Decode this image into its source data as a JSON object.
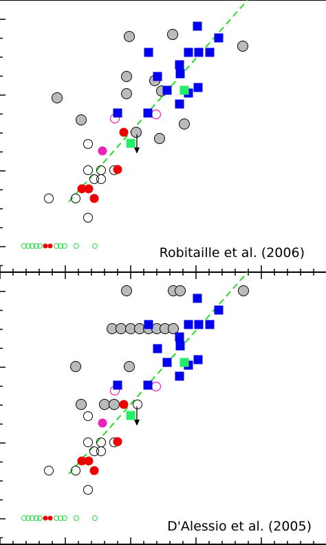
{
  "chart_data": [
    {
      "type": "scatter",
      "title": "",
      "annotation": "Robitaille et al. (2006)",
      "xlabel": "",
      "ylabel": "",
      "xlim": [
        0,
        474
      ],
      "ylim": [
        0,
        395
      ],
      "trend_line": {
        "color": "#22dd22",
        "dash": true,
        "points": [
          [
            100,
            102
          ],
          [
            360,
            395
          ]
        ]
      },
      "series": [
        {
          "marker": "circle-gray",
          "points": [
            [
              188,
              342
            ],
            [
              251,
              345
            ],
            [
              353,
              328
            ],
            [
              83,
              253
            ],
            [
              184,
              284
            ],
            [
              225,
              278
            ],
            [
              235,
              263
            ],
            [
              118,
              221
            ],
            [
              268,
              215
            ],
            [
              198,
              203
            ],
            [
              232,
              194
            ],
            [
              184,
              259
            ]
          ]
        },
        {
          "marker": "square-blue",
          "points": [
            [
              287,
              357
            ],
            [
              318,
              340
            ],
            [
              216,
              319
            ],
            [
              274,
              319
            ],
            [
              289,
              319
            ],
            [
              305,
              319
            ],
            [
              261,
              301
            ],
            [
              229,
              284
            ],
            [
              262,
              288
            ],
            [
              243,
              264
            ],
            [
              288,
              268
            ],
            [
              274,
              260
            ],
            [
              261,
              244
            ],
            [
              215,
              231
            ],
            [
              171,
              231
            ]
          ]
        },
        {
          "marker": "square-green",
          "points": [
            [
              268,
              264
            ],
            [
              190,
              187
            ]
          ]
        },
        {
          "marker": "circle-magenta-open",
          "points": [
            [
              227,
              229
            ],
            [
              167,
              223
            ]
          ]
        },
        {
          "marker": "circle-magenta",
          "points": [
            [
              149,
              176
            ]
          ]
        },
        {
          "marker": "circle-red",
          "points": [
            [
              180,
              203
            ],
            [
              171,
              149
            ],
            [
              119,
              121
            ],
            [
              129,
              121
            ],
            [
              137,
              107
            ]
          ]
        },
        {
          "marker": "circle-open",
          "points": [
            [
              128,
              186
            ],
            [
              128,
              148
            ],
            [
              147,
              148
            ],
            [
              166,
              148
            ],
            [
              137,
              135
            ],
            [
              147,
              135
            ],
            [
              71,
              107
            ],
            [
              110,
              107
            ],
            [
              128,
              79
            ]
          ]
        },
        {
          "marker": "circle-green-small-open",
          "points": [
            [
              35,
              38
            ],
            [
              41,
              38
            ],
            [
              47,
              38
            ],
            [
              53,
              38
            ],
            [
              58,
              38
            ],
            [
              82,
              38
            ],
            [
              88,
              38
            ],
            [
              94,
              38
            ],
            [
              111,
              38
            ],
            [
              138,
              38
            ]
          ]
        },
        {
          "marker": "circle-red-small",
          "points": [
            [
              66,
              38
            ],
            [
              73,
              38
            ]
          ]
        },
        {
          "marker": "upper-limit-arrow",
          "points": [
            [
              199,
              200
            ]
          ]
        }
      ]
    },
    {
      "type": "scatter",
      "title": "",
      "annotation": "D'Alessio et al. (2005)",
      "xlabel": "",
      "ylabel": "",
      "xlim": [
        0,
        474
      ],
      "ylim": [
        0,
        395
      ],
      "trend_line": {
        "color": "#22dd22",
        "dash": true,
        "points": [
          [
            100,
            102
          ],
          [
            360,
            395
          ]
        ]
      },
      "series": [
        {
          "marker": "circle-gray",
          "points": [
            [
              184,
              368
            ],
            [
              252,
              368
            ],
            [
              262,
              368
            ],
            [
              354,
              368
            ],
            [
              163,
              313
            ],
            [
              176,
              313
            ],
            [
              190,
              313
            ],
            [
              203,
              313
            ],
            [
              216,
              313
            ],
            [
              228,
              313
            ],
            [
              240,
              313
            ],
            [
              252,
              313
            ],
            [
              110,
              258
            ],
            [
              188,
              258
            ],
            [
              118,
              203
            ],
            [
              152,
              203
            ],
            [
              166,
              203
            ]
          ]
        },
        {
          "marker": "square-blue",
          "points": [
            [
              287,
              357
            ],
            [
              318,
              340
            ],
            [
              216,
              319
            ],
            [
              274,
              319
            ],
            [
              289,
              319
            ],
            [
              305,
              319
            ],
            [
              261,
              301
            ],
            [
              229,
              284
            ],
            [
              262,
              288
            ],
            [
              243,
              264
            ],
            [
              288,
              268
            ],
            [
              274,
              260
            ],
            [
              261,
              244
            ],
            [
              215,
              231
            ],
            [
              171,
              231
            ]
          ]
        },
        {
          "marker": "square-green",
          "points": [
            [
              268,
              264
            ],
            [
              190,
              187
            ]
          ]
        },
        {
          "marker": "circle-magenta-open",
          "points": [
            [
              227,
              229
            ],
            [
              167,
              223
            ]
          ]
        },
        {
          "marker": "circle-magenta",
          "points": [
            [
              149,
              176
            ]
          ]
        },
        {
          "marker": "circle-red",
          "points": [
            [
              180,
              203
            ],
            [
              171,
              149
            ],
            [
              119,
              121
            ],
            [
              129,
              121
            ],
            [
              137,
              107
            ]
          ]
        },
        {
          "marker": "circle-open",
          "points": [
            [
              200,
              203
            ],
            [
              128,
              186
            ],
            [
              128,
              148
            ],
            [
              147,
              148
            ],
            [
              166,
              148
            ],
            [
              137,
              135
            ],
            [
              147,
              135
            ],
            [
              71,
              107
            ],
            [
              110,
              107
            ],
            [
              128,
              79
            ]
          ]
        },
        {
          "marker": "circle-green-small-open",
          "points": [
            [
              35,
              38
            ],
            [
              41,
              38
            ],
            [
              47,
              38
            ],
            [
              53,
              38
            ],
            [
              58,
              38
            ],
            [
              82,
              38
            ],
            [
              88,
              38
            ],
            [
              94,
              38
            ],
            [
              111,
              38
            ],
            [
              138,
              38
            ]
          ]
        },
        {
          "marker": "circle-red-small",
          "points": [
            [
              66,
              38
            ],
            [
              73,
              38
            ]
          ]
        },
        {
          "marker": "upper-limit-arrow",
          "points": [
            [
              199,
              200
            ]
          ]
        }
      ]
    }
  ],
  "colors": {
    "gray_fill": "#bbbbbb",
    "blue_square": "#0000ee",
    "green_square": "#22ee66",
    "red_dot": "#ee0000",
    "magenta": "#ee22bb",
    "open_green": "#22dd44",
    "trend_line": "#22dd22"
  }
}
